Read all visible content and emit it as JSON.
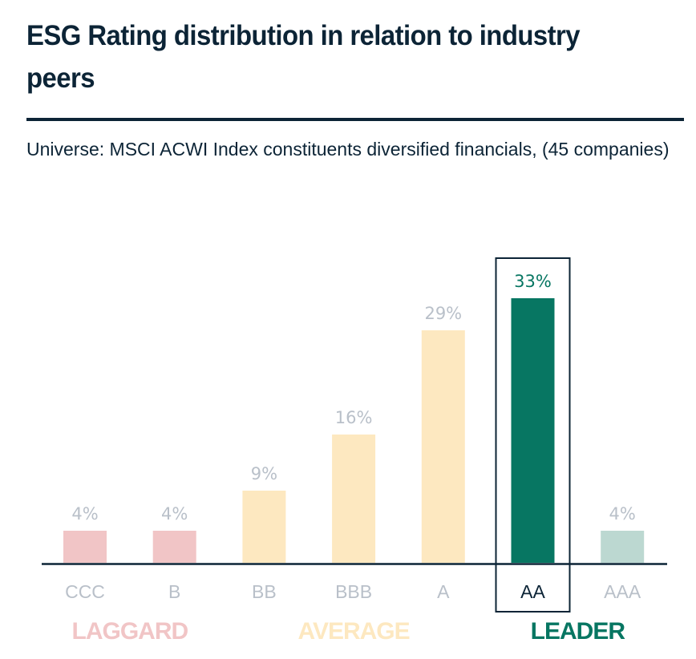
{
  "header": {
    "title": "ESG Rating distribution in relation to industry peers",
    "subtitle": "Universe: MSCI ACWI Index constituents diversified financials, (45 companies)"
  },
  "chart_data": {
    "type": "bar",
    "title": "ESG Rating distribution in relation to industry peers",
    "subtitle": "Universe: MSCI ACWI Index constituents diversified financials, (45 companies)",
    "xlabel": "",
    "ylabel": "",
    "unit": "%",
    "ylim": [
      0,
      33
    ],
    "grid": false,
    "categories": [
      "CCC",
      "B",
      "BB",
      "BBB",
      "A",
      "AA",
      "AAA"
    ],
    "values": [
      4,
      4,
      9,
      16,
      29,
      33,
      4
    ],
    "data_labels": [
      "4%",
      "4%",
      "9%",
      "16%",
      "29%",
      "33%",
      "4%"
    ],
    "highlighted_category": "AA",
    "bar_colors": [
      "#f1c5c6",
      "#f1c5c6",
      "#fde8c0",
      "#fde8c0",
      "#fde8c0",
      "#077662",
      "#bcd8d1"
    ],
    "groups": [
      {
        "label": "LAGGARD",
        "categories": [
          "CCC",
          "B"
        ],
        "color": "#f1c5c6"
      },
      {
        "label": "AVERAGE",
        "categories": [
          "BB",
          "BBB",
          "A"
        ],
        "color": "#fde8c0"
      },
      {
        "label": "LEADER",
        "categories": [
          "AA",
          "AAA"
        ],
        "color": "#077662"
      }
    ],
    "colors": {
      "axis": "#0c2436",
      "label_muted": "#b9c0c9",
      "highlight_value": "#077662",
      "highlight_category": "#0c2436"
    }
  }
}
